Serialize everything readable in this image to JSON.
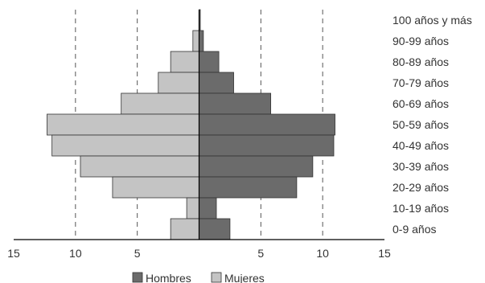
{
  "chart_data": {
    "type": "bar",
    "orientation": "horizontal",
    "layout": "population-pyramid",
    "categories": [
      "100 años y más",
      "90-99 años",
      "80-89 años",
      "70-79 años",
      "60-69 años",
      "50-59 años",
      "40-49 años",
      "30-39 años",
      "20-29 años",
      "10-19 años",
      "0-9 años"
    ],
    "series": [
      {
        "name": "Hombres",
        "side": "right",
        "color": "#6b6b6b",
        "values": [
          0.1,
          0.35,
          1.6,
          2.8,
          5.8,
          11.0,
          10.9,
          9.2,
          7.9,
          1.4,
          2.5
        ]
      },
      {
        "name": "Mujeres",
        "side": "left",
        "color": "#c4c4c4",
        "values": [
          0.0,
          0.5,
          2.3,
          3.3,
          6.3,
          12.3,
          11.9,
          9.6,
          7.0,
          1.0,
          2.3
        ]
      }
    ],
    "x_ticks": [
      "15",
      "10",
      "5",
      "",
      "5",
      "10",
      "15"
    ],
    "xlim": [
      -15,
      15
    ],
    "grid": "vertical dashed at 5 and 10 on both sides",
    "legend_position": "bottom-center"
  }
}
